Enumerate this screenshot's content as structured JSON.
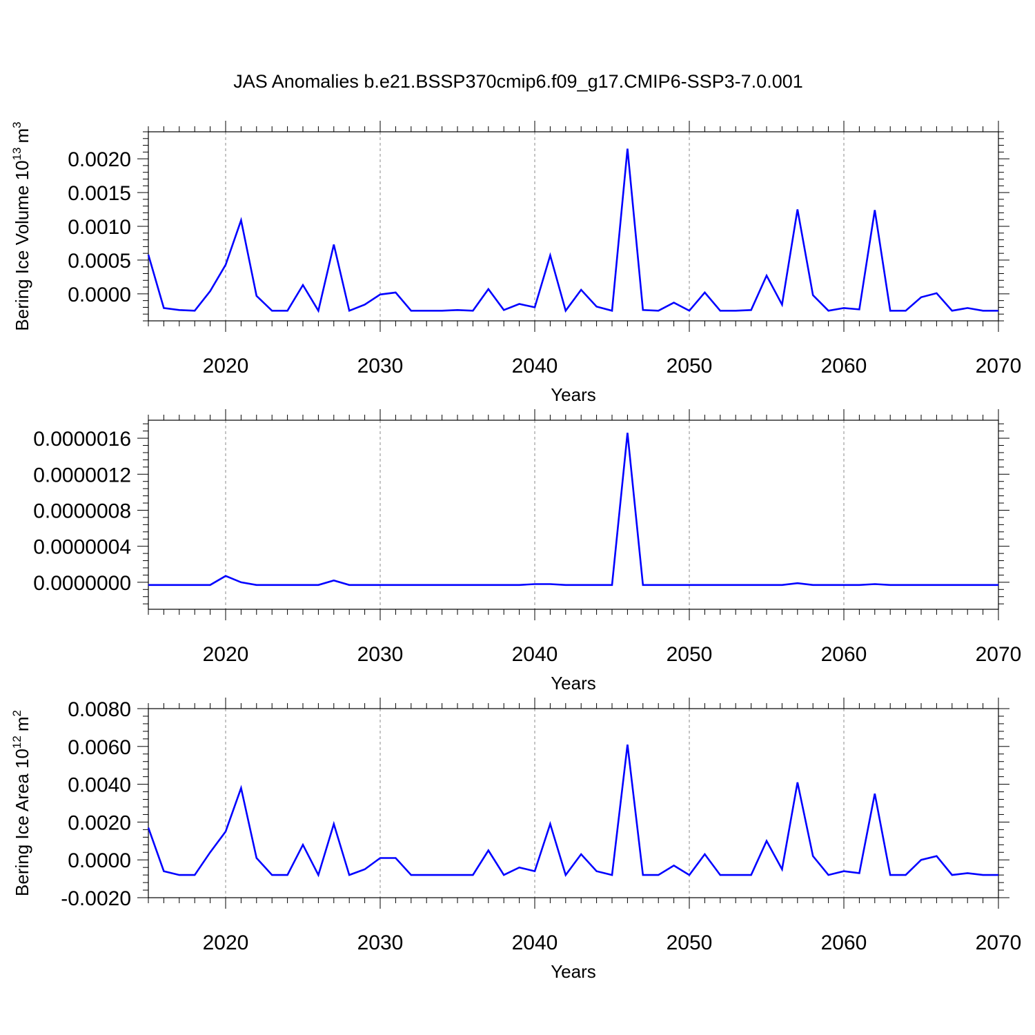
{
  "title": "JAS Anomalies b.e21.BSSP370cmip6.f09_g17.CMIP6-SSP3-7.0.001",
  "line_color": "#0000ff",
  "chart_data": [
    {
      "type": "line",
      "xlabel": "Years",
      "ylabel": "Bering Ice Volume 10",
      "ylabel_exp": "13",
      "ylabel_unit": "m",
      "ylabel_unit_exp": "3",
      "xlim": [
        2015,
        2070
      ],
      "ylim": [
        -0.0004,
        0.0024
      ],
      "xticks": [
        2020,
        2030,
        2040,
        2050,
        2060,
        2070
      ],
      "xtick_labels": [
        "2020",
        "2030",
        "2040",
        "2050",
        "2060",
        "2070"
      ],
      "yticks": [
        0,
        0.0005,
        0.001,
        0.0015,
        0.002
      ],
      "ytick_labels": [
        "0.0000",
        "0.0005",
        "0.0010",
        "0.0015",
        "0.0020"
      ],
      "x": [
        2015,
        2016,
        2017,
        2018,
        2019,
        2020,
        2021,
        2022,
        2023,
        2024,
        2025,
        2026,
        2027,
        2028,
        2029,
        2030,
        2031,
        2032,
        2033,
        2034,
        2035,
        2036,
        2037,
        2038,
        2039,
        2040,
        2041,
        2042,
        2043,
        2044,
        2045,
        2046,
        2047,
        2048,
        2049,
        2050,
        2051,
        2052,
        2053,
        2054,
        2055,
        2056,
        2057,
        2058,
        2059,
        2060,
        2061,
        2062,
        2063,
        2064,
        2065,
        2066,
        2067,
        2068,
        2069,
        2070
      ],
      "series": [
        {
          "values": [
            0.00058,
            -0.00021,
            -0.00024,
            -0.00025,
            4e-05,
            0.00043,
            0.00109,
            -3e-05,
            -0.00025,
            -0.00025,
            0.00013,
            -0.00025,
            0.00073,
            -0.00025,
            -0.00016,
            -1e-05,
            2e-05,
            -0.00025,
            -0.00025,
            -0.00025,
            -0.00024,
            -0.00025,
            7e-05,
            -0.00024,
            -0.00015,
            -0.0002,
            0.00057,
            -0.00025,
            6e-05,
            -0.00019,
            -0.00025,
            0.00215,
            -0.00024,
            -0.00025,
            -0.00013,
            -0.00025,
            2e-05,
            -0.00025,
            -0.00025,
            -0.00024,
            0.00027,
            -0.00016,
            0.00125,
            -2e-05,
            -0.00025,
            -0.00021,
            -0.00023,
            0.00124,
            -0.00025,
            -0.00025,
            -5e-05,
            1e-05,
            -0.00025,
            -0.00021,
            -0.00025,
            -0.00025
          ]
        }
      ]
    },
    {
      "type": "line",
      "xlabel": "Years",
      "ylabel": "",
      "xlim": [
        2015,
        2070
      ],
      "ylim": [
        -3e-07,
        1.8e-06
      ],
      "xticks": [
        2020,
        2030,
        2040,
        2050,
        2060,
        2070
      ],
      "xtick_labels": [
        "2020",
        "2030",
        "2040",
        "2050",
        "2060",
        "2070"
      ],
      "yticks": [
        0,
        4e-07,
        8e-07,
        1.2e-06,
        1.6e-06
      ],
      "ytick_labels": [
        "0.0000000",
        "0.0000004",
        "0.0000008",
        "0.0000012",
        "0.0000016"
      ],
      "x": [
        2015,
        2016,
        2017,
        2018,
        2019,
        2020,
        2021,
        2022,
        2023,
        2024,
        2025,
        2026,
        2027,
        2028,
        2029,
        2030,
        2031,
        2032,
        2033,
        2034,
        2035,
        2036,
        2037,
        2038,
        2039,
        2040,
        2041,
        2042,
        2043,
        2044,
        2045,
        2046,
        2047,
        2048,
        2049,
        2050,
        2051,
        2052,
        2053,
        2054,
        2055,
        2056,
        2057,
        2058,
        2059,
        2060,
        2061,
        2062,
        2063,
        2064,
        2065,
        2066,
        2067,
        2068,
        2069,
        2070
      ],
      "series": [
        {
          "values": [
            -3e-08,
            -3e-08,
            -3e-08,
            -3e-08,
            -3e-08,
            7e-08,
            0.0,
            -3e-08,
            -3e-08,
            -3e-08,
            -3e-08,
            -3e-08,
            2e-08,
            -3e-08,
            -3e-08,
            -3e-08,
            -3e-08,
            -3e-08,
            -3e-08,
            -3e-08,
            -3e-08,
            -3e-08,
            -3e-08,
            -3e-08,
            -3e-08,
            -2e-08,
            -2e-08,
            -3e-08,
            -3e-08,
            -3e-08,
            -3e-08,
            1.66e-06,
            -3e-08,
            -3e-08,
            -3e-08,
            -3e-08,
            -3e-08,
            -3e-08,
            -3e-08,
            -3e-08,
            -3e-08,
            -3e-08,
            -1e-08,
            -3e-08,
            -3e-08,
            -3e-08,
            -3e-08,
            -2e-08,
            -3e-08,
            -3e-08,
            -3e-08,
            -3e-08,
            -3e-08,
            -3e-08,
            -3e-08,
            -3e-08
          ]
        }
      ]
    },
    {
      "type": "line",
      "xlabel": "Years",
      "ylabel": "Bering Ice Area 10",
      "ylabel_exp": "12",
      "ylabel_unit": "m",
      "ylabel_unit_exp": "2",
      "xlim": [
        2015,
        2070
      ],
      "ylim": [
        -0.002,
        0.008
      ],
      "xticks": [
        2020,
        2030,
        2040,
        2050,
        2060,
        2070
      ],
      "xtick_labels": [
        "2020",
        "2030",
        "2040",
        "2050",
        "2060",
        "2070"
      ],
      "yticks": [
        -0.002,
        0,
        0.002,
        0.004,
        0.006,
        0.008
      ],
      "ytick_labels": [
        "-0.0020",
        "0.0000",
        "0.0020",
        "0.0040",
        "0.0060",
        "0.0080"
      ],
      "x": [
        2015,
        2016,
        2017,
        2018,
        2019,
        2020,
        2021,
        2022,
        2023,
        2024,
        2025,
        2026,
        2027,
        2028,
        2029,
        2030,
        2031,
        2032,
        2033,
        2034,
        2035,
        2036,
        2037,
        2038,
        2039,
        2040,
        2041,
        2042,
        2043,
        2044,
        2045,
        2046,
        2047,
        2048,
        2049,
        2050,
        2051,
        2052,
        2053,
        2054,
        2055,
        2056,
        2057,
        2058,
        2059,
        2060,
        2061,
        2062,
        2063,
        2064,
        2065,
        2066,
        2067,
        2068,
        2069,
        2070
      ],
      "series": [
        {
          "values": [
            0.0017,
            -0.0006,
            -0.0008,
            -0.0008,
            0.0004,
            0.0015,
            0.0038,
            0.0001,
            -0.0008,
            -0.0008,
            0.0008,
            -0.0008,
            0.0019,
            -0.0008,
            -0.0005,
            0.0001,
            0.0001,
            -0.0008,
            -0.0008,
            -0.0008,
            -0.0008,
            -0.0008,
            0.0005,
            -0.0008,
            -0.0004,
            -0.0006,
            0.0019,
            -0.0008,
            0.0003,
            -0.0006,
            -0.0008,
            0.0061,
            -0.0008,
            -0.0008,
            -0.0003,
            -0.0008,
            0.0003,
            -0.0008,
            -0.0008,
            -0.0008,
            0.001,
            -0.0005,
            0.0041,
            0.0002,
            -0.0008,
            -0.0006,
            -0.0007,
            0.0035,
            -0.0008,
            -0.0008,
            0.0,
            0.0002,
            -0.0008,
            -0.0007,
            -0.0008,
            -0.0008
          ]
        }
      ]
    }
  ]
}
